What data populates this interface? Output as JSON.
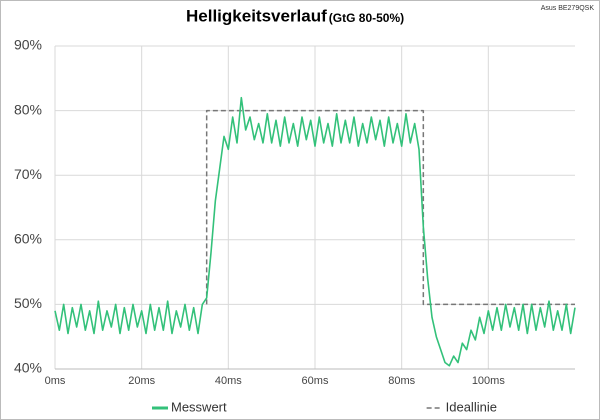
{
  "chart_data": {
    "type": "line",
    "title": "Helligkeitsverlauf",
    "subtitle": "(GtG 80-50%)",
    "annotation": "Asus BE279QSK",
    "xlim": [
      0,
      120
    ],
    "ylim": [
      40,
      90
    ],
    "xticks": [
      {
        "value": 0,
        "label": "0ms"
      },
      {
        "value": 20,
        "label": "20ms"
      },
      {
        "value": 40,
        "label": "40ms"
      },
      {
        "value": 60,
        "label": "60ms"
      },
      {
        "value": 80,
        "label": "80ms"
      },
      {
        "value": 100,
        "label": "100ms"
      }
    ],
    "yticks": [
      {
        "value": 40,
        "label": "40%"
      },
      {
        "value": 50,
        "label": "50%"
      },
      {
        "value": 60,
        "label": "60%"
      },
      {
        "value": 70,
        "label": "70%"
      },
      {
        "value": 80,
        "label": "80%"
      },
      {
        "value": 90,
        "label": "90%"
      }
    ],
    "grid": true,
    "legend": "bottom",
    "series": [
      {
        "name": "Messwert",
        "color": "#33c17a",
        "dashed": false,
        "x": [
          0,
          1,
          2,
          3,
          4,
          5,
          6,
          7,
          8,
          9,
          10,
          11,
          12,
          13,
          14,
          15,
          16,
          17,
          18,
          19,
          20,
          21,
          22,
          23,
          24,
          25,
          26,
          27,
          28,
          29,
          30,
          31,
          32,
          33,
          34,
          35,
          36,
          37,
          38,
          39,
          40,
          41,
          42,
          43,
          44,
          45,
          46,
          47,
          48,
          49,
          50,
          51,
          52,
          53,
          54,
          55,
          56,
          57,
          58,
          59,
          60,
          61,
          62,
          63,
          64,
          65,
          66,
          67,
          68,
          69,
          70,
          71,
          72,
          73,
          74,
          75,
          76,
          77,
          78,
          79,
          80,
          81,
          82,
          83,
          84,
          85,
          86,
          87,
          88,
          89,
          90,
          91,
          92,
          93,
          94,
          95,
          96,
          97,
          98,
          99,
          100,
          101,
          102,
          103,
          104,
          105,
          106,
          107,
          108,
          109,
          110,
          111,
          112,
          113,
          114,
          115,
          116,
          117,
          118,
          119,
          120
        ],
        "values": [
          49,
          46,
          50,
          45.5,
          49.5,
          46.5,
          50,
          46,
          49,
          45.5,
          50.5,
          46,
          49,
          46.5,
          50,
          45.5,
          49.5,
          46,
          50,
          46.5,
          49,
          45.5,
          50,
          46,
          49.5,
          46,
          50.5,
          45.5,
          49,
          46.5,
          50,
          46,
          49.5,
          45.5,
          50,
          51,
          58,
          66,
          71,
          76,
          74,
          79,
          75,
          82,
          77,
          79,
          75.5,
          78,
          75,
          79.5,
          75,
          78.5,
          74.5,
          79,
          75,
          78,
          74.5,
          79,
          75.5,
          78.5,
          74.5,
          79,
          75,
          78,
          74.5,
          79.5,
          75,
          78.5,
          75,
          79,
          74.5,
          78,
          75,
          79,
          75.5,
          78.5,
          74.5,
          79,
          75,
          78,
          74.5,
          79.5,
          75,
          78,
          74,
          62,
          54,
          48,
          45,
          43,
          41,
          40.5,
          42,
          41,
          44,
          43,
          46,
          44.5,
          48,
          45.5,
          49,
          46,
          49.5,
          46,
          50,
          46.5,
          49.5,
          46,
          50,
          45.5,
          50,
          46,
          49.5,
          46.5,
          50.5,
          46,
          49,
          46,
          50,
          45.5,
          49.5
        ]
      },
      {
        "name": "Ideallinie",
        "color": "#777777",
        "dashed": true,
        "x": [
          35,
          35,
          85,
          85,
          120
        ],
        "values": [
          50,
          80,
          80,
          50,
          50
        ]
      }
    ]
  }
}
